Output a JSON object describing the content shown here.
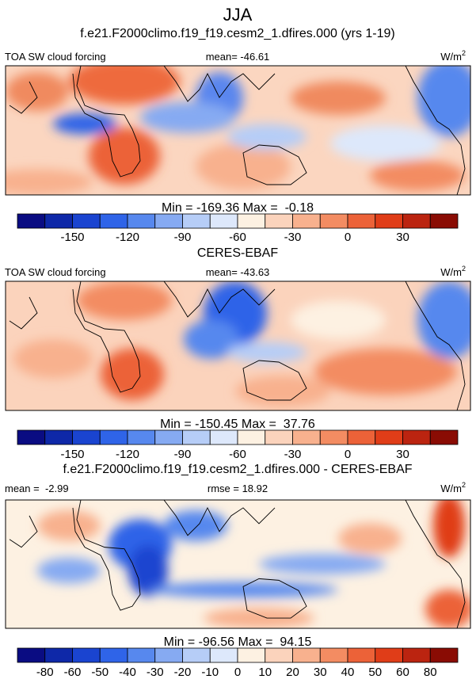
{
  "title": "JJA",
  "panels": [
    {
      "title": "f.e21.F2000climo.f19_f19.cesm2_1.dfires.000 (yrs 1-19)",
      "left_label": "TOA SW cloud forcing",
      "center_label": "mean= -46.61",
      "units": {
        "base": "W/m",
        "sup": "2"
      },
      "minmax": "Min = -169.36 Max =  -0.18",
      "colorbar": {
        "colors": [
          "#0a0c82",
          "#0e28a8",
          "#1a44d0",
          "#2f64e8",
          "#5788ee",
          "#86aaf2",
          "#b6cdf7",
          "#dde8fb",
          "#fdf1e2",
          "#fbd3bc",
          "#f8b18e",
          "#f38c62",
          "#ec6238",
          "#e03d18",
          "#bb2410",
          "#8a0c04"
        ],
        "ticks": [
          -150,
          -120,
          -90,
          -60,
          -30,
          0,
          30
        ],
        "tick_step": 2
      }
    },
    {
      "title": "CERES-EBAF",
      "left_label": "TOA SW cloud forcing",
      "center_label": "mean= -43.63",
      "units": {
        "base": "W/m",
        "sup": "2"
      },
      "minmax": "Min = -150.45 Max =  37.76",
      "colorbar": {
        "colors": [
          "#0a0c82",
          "#0e28a8",
          "#1a44d0",
          "#2f64e8",
          "#5788ee",
          "#86aaf2",
          "#b6cdf7",
          "#dde8fb",
          "#fdf1e2",
          "#fbd3bc",
          "#f8b18e",
          "#f38c62",
          "#ec6238",
          "#e03d18",
          "#bb2410",
          "#8a0c04"
        ],
        "ticks": [
          -150,
          -120,
          -90,
          -60,
          -30,
          0,
          30
        ],
        "tick_step": 2
      }
    },
    {
      "title": "f.e21.F2000climo.f19_f19.cesm2_1.dfires.000 - CERES-EBAF",
      "left_label": "mean =  -2.99",
      "center_label": "rmse = 18.92",
      "units": {
        "base": "W/m",
        "sup": "2"
      },
      "minmax": "Min = -96.56 Max =  94.15",
      "colorbar": {
        "colors": [
          "#0a0c82",
          "#0e28a8",
          "#1a44d0",
          "#2f64e8",
          "#5788ee",
          "#86aaf2",
          "#b6cdf7",
          "#dde8fb",
          "#fdf1e2",
          "#fbd3bc",
          "#f8b18e",
          "#f38c62",
          "#ec6238",
          "#e03d18",
          "#bb2410",
          "#8a0c04"
        ],
        "ticks": [
          -80,
          -60,
          -50,
          -40,
          -30,
          -20,
          -10,
          0,
          10,
          20,
          30,
          40,
          50,
          60,
          80
        ],
        "tick_step": 1
      }
    }
  ]
}
